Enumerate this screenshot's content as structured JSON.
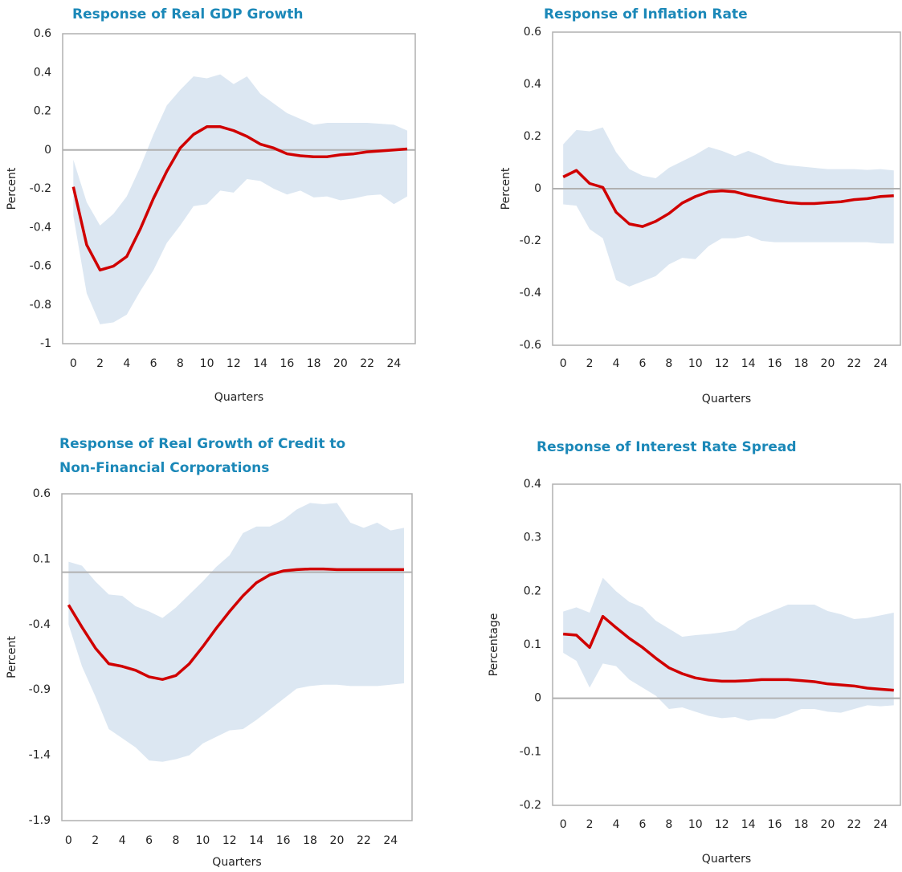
{
  "chart_data": [
    {
      "type": "line",
      "title": "Response of Real GDP Growth",
      "xlabel": "Quarters",
      "ylabel": "Percent",
      "x": [
        0,
        1,
        2,
        3,
        4,
        5,
        6,
        7,
        8,
        9,
        10,
        11,
        12,
        13,
        14,
        15,
        16,
        17,
        18,
        19,
        20,
        21,
        22,
        23,
        24,
        25
      ],
      "values": [
        -0.19,
        -0.49,
        -0.62,
        -0.6,
        -0.55,
        -0.41,
        -0.25,
        -0.11,
        0.01,
        0.08,
        0.12,
        0.12,
        0.1,
        0.07,
        0.03,
        0.01,
        -0.02,
        -0.03,
        -0.035,
        -0.035,
        -0.025,
        -0.02,
        -0.01,
        -0.005,
        0,
        0.005
      ],
      "upper": [
        -0.05,
        -0.27,
        -0.39,
        -0.33,
        -0.24,
        -0.09,
        0.08,
        0.23,
        0.31,
        0.38,
        0.37,
        0.39,
        0.34,
        0.38,
        0.29,
        0.24,
        0.19,
        0.16,
        0.13,
        0.14,
        0.14,
        0.14,
        0.14,
        0.135,
        0.13,
        0.1
      ],
      "lower": [
        -0.34,
        -0.74,
        -0.9,
        -0.89,
        -0.85,
        -0.73,
        -0.62,
        -0.48,
        -0.39,
        -0.29,
        -0.28,
        -0.21,
        -0.22,
        -0.15,
        -0.16,
        -0.2,
        -0.23,
        -0.21,
        -0.245,
        -0.24,
        -0.26,
        -0.25,
        -0.235,
        -0.23,
        -0.28,
        -0.24
      ],
      "color": "#d00000",
      "band_color": "#dce7f2",
      "xlim": [
        -0.8,
        25.6
      ],
      "xticks": [
        0,
        2,
        4,
        6,
        8,
        10,
        12,
        14,
        16,
        18,
        20,
        22,
        24
      ],
      "ylim": [
        -1,
        0.6
      ],
      "yticks": [
        -1,
        -0.8,
        -0.6,
        -0.4,
        -0.2,
        0,
        0.2,
        0.4,
        0.6
      ]
    },
    {
      "type": "line",
      "title": "Response of Inflation Rate",
      "xlabel": "Quarters",
      "ylabel": "Percent",
      "x": [
        0,
        1,
        2,
        3,
        4,
        5,
        6,
        7,
        8,
        9,
        10,
        11,
        12,
        13,
        14,
        15,
        16,
        17,
        18,
        19,
        20,
        21,
        22,
        23,
        24,
        25
      ],
      "values": [
        0.045,
        0.07,
        0.02,
        0.005,
        -0.09,
        -0.135,
        -0.145,
        -0.125,
        -0.095,
        -0.055,
        -0.03,
        -0.012,
        -0.008,
        -0.012,
        -0.025,
        -0.035,
        -0.045,
        -0.053,
        -0.057,
        -0.057,
        -0.053,
        -0.05,
        -0.042,
        -0.038,
        -0.03,
        -0.027
      ],
      "upper": [
        0.17,
        0.225,
        0.22,
        0.235,
        0.14,
        0.075,
        0.05,
        0.04,
        0.08,
        0.105,
        0.13,
        0.16,
        0.145,
        0.125,
        0.145,
        0.125,
        0.1,
        0.09,
        0.085,
        0.08,
        0.075,
        0.075,
        0.075,
        0.072,
        0.075,
        0.07
      ],
      "lower": [
        -0.06,
        -0.065,
        -0.155,
        -0.19,
        -0.35,
        -0.375,
        -0.355,
        -0.335,
        -0.29,
        -0.265,
        -0.27,
        -0.22,
        -0.19,
        -0.19,
        -0.18,
        -0.2,
        -0.205,
        -0.205,
        -0.205,
        -0.205,
        -0.205,
        -0.205,
        -0.205,
        -0.205,
        -0.21,
        -0.21
      ],
      "color": "#d00000",
      "band_color": "#dce7f2",
      "xlim": [
        -0.8,
        25.5
      ],
      "xticks": [
        0,
        2,
        4,
        6,
        8,
        10,
        12,
        14,
        16,
        18,
        20,
        22,
        24
      ],
      "ylim": [
        -0.6,
        0.6
      ],
      "yticks": [
        -0.6,
        -0.4,
        -0.2,
        0,
        0.2,
        0.4,
        0.6
      ]
    },
    {
      "type": "line",
      "title": [
        "Response of Real Growth of Credit  to",
        "Non-Financial Corporations"
      ],
      "xlabel": "Quarters",
      "ylabel": "Percent",
      "x": [
        0,
        1,
        2,
        3,
        4,
        5,
        6,
        7,
        8,
        9,
        10,
        11,
        12,
        13,
        14,
        15,
        16,
        17,
        18,
        19,
        20,
        21,
        22,
        23,
        24,
        25
      ],
      "values": [
        -0.25,
        -0.42,
        -0.58,
        -0.7,
        -0.72,
        -0.75,
        -0.8,
        -0.82,
        -0.79,
        -0.7,
        -0.57,
        -0.43,
        -0.3,
        -0.18,
        -0.08,
        -0.02,
        0.01,
        0.02,
        0.025,
        0.025,
        0.02,
        0.02,
        0.02,
        0.02,
        0.02,
        0.02
      ],
      "upper": [
        0.08,
        0.05,
        -0.07,
        -0.17,
        -0.18,
        -0.26,
        -0.3,
        -0.35,
        -0.27,
        -0.17,
        -0.07,
        0.04,
        0.13,
        0.3,
        0.35,
        0.35,
        0.4,
        0.48,
        0.53,
        0.52,
        0.53,
        0.38,
        0.34,
        0.38,
        0.32,
        0.34
      ],
      "lower": [
        -0.4,
        -0.72,
        -0.95,
        -1.2,
        -1.27,
        -1.34,
        -1.44,
        -1.45,
        -1.43,
        -1.4,
        -1.31,
        -1.26,
        -1.21,
        -1.2,
        -1.13,
        -1.05,
        -0.97,
        -0.89,
        -0.87,
        -0.86,
        -0.86,
        -0.87,
        -0.87,
        -0.87,
        -0.86,
        -0.85
      ],
      "color": "#d00000",
      "band_color": "#dce7f2",
      "xlim": [
        -0.5,
        25.6
      ],
      "xticks": [
        0,
        2,
        4,
        6,
        8,
        10,
        12,
        14,
        16,
        18,
        20,
        22,
        24
      ],
      "ylim": [
        -1.9,
        0.6
      ],
      "yticks": [
        -1.9,
        -1.4,
        -0.9,
        -0.4,
        0.1,
        0.6
      ]
    },
    {
      "type": "line",
      "title": "Response of Interest Rate Spread",
      "xlabel": "Quarters",
      "ylabel": "Percentage",
      "x": [
        0,
        1,
        2,
        3,
        4,
        5,
        6,
        7,
        8,
        9,
        10,
        11,
        12,
        13,
        14,
        15,
        16,
        17,
        18,
        19,
        20,
        21,
        22,
        23,
        24,
        25
      ],
      "values": [
        0.12,
        0.118,
        0.095,
        0.153,
        0.132,
        0.112,
        0.095,
        0.075,
        0.057,
        0.046,
        0.038,
        0.034,
        0.032,
        0.032,
        0.033,
        0.035,
        0.035,
        0.035,
        0.033,
        0.031,
        0.027,
        0.025,
        0.023,
        0.019,
        0.017,
        0.015
      ],
      "upper": [
        0.162,
        0.17,
        0.16,
        0.225,
        0.2,
        0.18,
        0.17,
        0.145,
        0.13,
        0.115,
        0.118,
        0.12,
        0.123,
        0.127,
        0.145,
        0.155,
        0.165,
        0.175,
        0.175,
        0.175,
        0.163,
        0.157,
        0.148,
        0.15,
        0.155,
        0.16
      ],
      "lower": [
        0.085,
        0.07,
        0.02,
        0.065,
        0.06,
        0.035,
        0.02,
        0.005,
        -0.02,
        -0.017,
        -0.025,
        -0.033,
        -0.037,
        -0.035,
        -0.042,
        -0.038,
        -0.038,
        -0.03,
        -0.02,
        -0.02,
        -0.025,
        -0.027,
        -0.02,
        -0.013,
        -0.015,
        -0.013
      ],
      "color": "#d00000",
      "band_color": "#dce7f2",
      "xlim": [
        -0.8,
        25.5
      ],
      "xticks": [
        0,
        2,
        4,
        6,
        8,
        10,
        12,
        14,
        16,
        18,
        20,
        22,
        24
      ],
      "ylim": [
        -0.2,
        0.4
      ],
      "yticks": [
        -0.2,
        -0.1,
        0,
        0.1,
        0.2,
        0.3,
        0.4
      ]
    }
  ]
}
